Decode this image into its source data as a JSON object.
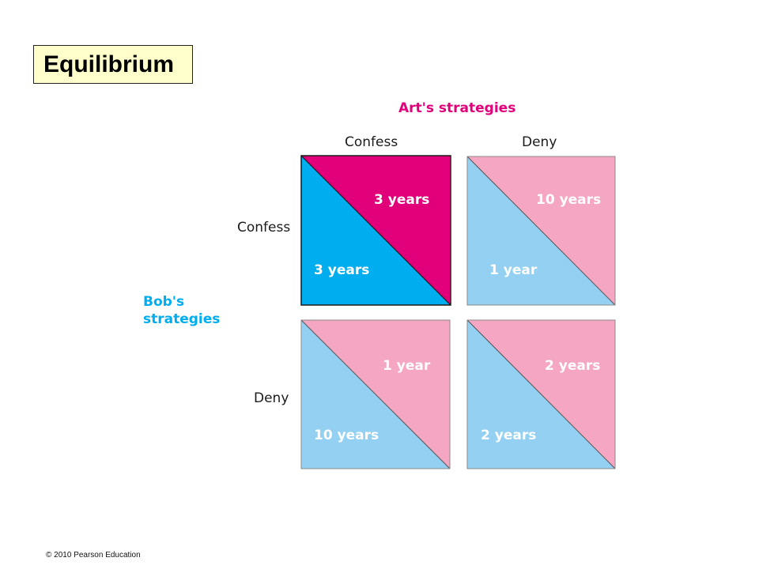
{
  "title": "Equilibrium",
  "column_player": "Art's strategies",
  "row_player_line1": "Bob's",
  "row_player_line2": "strategies",
  "columns": [
    "Confess",
    "Deny"
  ],
  "rows": [
    "Confess",
    "Deny"
  ],
  "cells": [
    {
      "row": "Confess",
      "col": "Confess",
      "art": "3 years",
      "bob": "3 years",
      "equilibrium": true
    },
    {
      "row": "Confess",
      "col": "Deny",
      "art": "10 years",
      "bob": "1 year",
      "equilibrium": false
    },
    {
      "row": "Deny",
      "col": "Confess",
      "art": "1 year",
      "bob": "10 years",
      "equilibrium": false
    },
    {
      "row": "Deny",
      "col": "Deny",
      "art": "2 years",
      "bob": "2 years",
      "equilibrium": false
    }
  ],
  "copyright": "© 2010 Pearson Education",
  "colors": {
    "art_strong": "#e2007a",
    "art_light": "#f5a6c2",
    "bob_strong": "#00aeef",
    "bob_light": "#93d0f2",
    "title_bg": "#ffffcc"
  }
}
